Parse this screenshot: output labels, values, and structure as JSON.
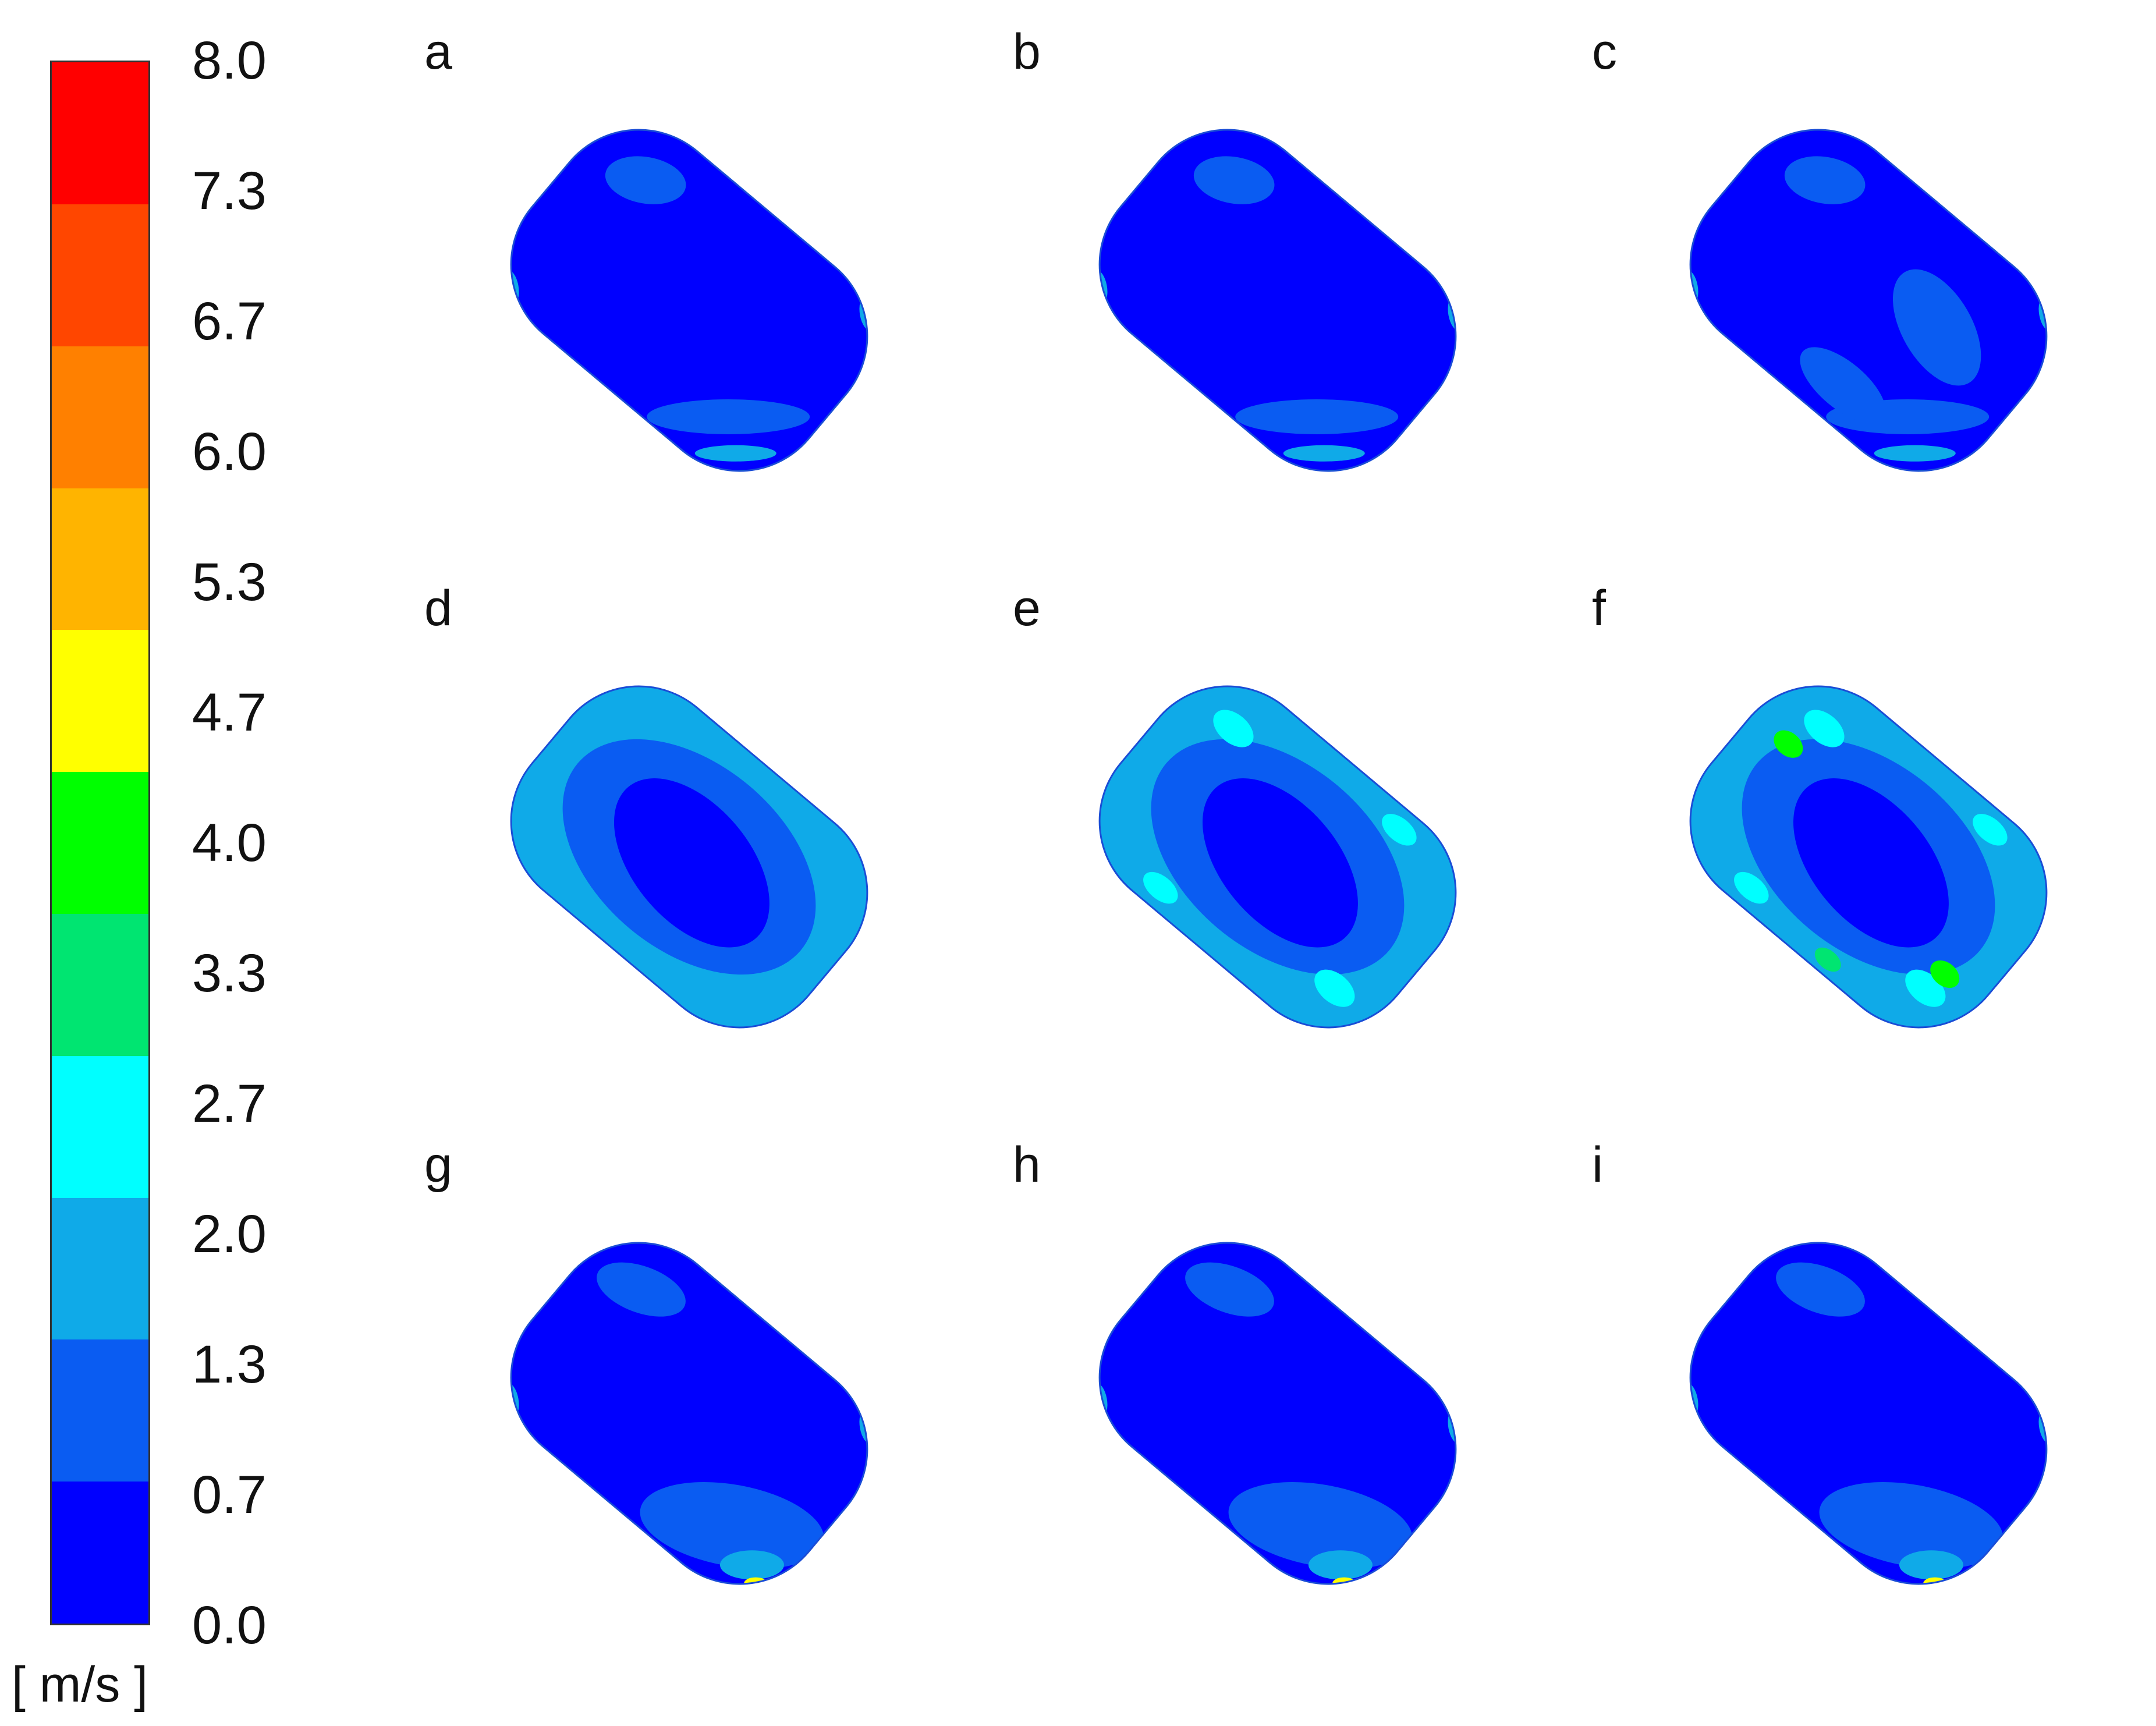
{
  "legend": {
    "unit": "[ m/s ]",
    "ticks": [
      "0.0",
      "0.7",
      "1.3",
      "2.0",
      "2.7",
      "3.3",
      "4.0",
      "4.7",
      "5.3",
      "6.0",
      "6.7",
      "7.3",
      "8.0"
    ],
    "band_colors": [
      "#0000ff",
      "#0a5cf2",
      "#0faae8",
      "#00ffff",
      "#00e571",
      "#00ff00",
      "#ffff00",
      "#ffb400",
      "#ff8000",
      "#ff4600",
      "#ff0000"
    ]
  },
  "panels": [
    {
      "label": "a",
      "regime": "inlet-jet"
    },
    {
      "label": "b",
      "regime": "inlet-jet"
    },
    {
      "label": "c",
      "regime": "inlet-jet"
    },
    {
      "label": "d",
      "regime": "ring"
    },
    {
      "label": "e",
      "regime": "ring"
    },
    {
      "label": "f",
      "regime": "ring"
    },
    {
      "label": "g",
      "regime": "wall-flow"
    },
    {
      "label": "h",
      "regime": "wall-flow"
    },
    {
      "label": "i",
      "regime": "wall-flow"
    }
  ]
}
